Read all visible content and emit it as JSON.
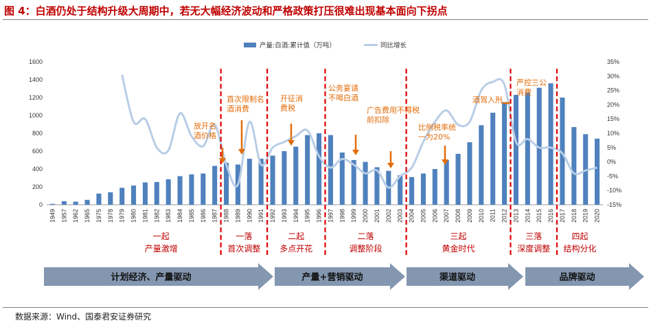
{
  "title": "图 4：白酒仍处于结构升级大周期中，若无大幅经济波动和严格政策打压很难出现基本面向下拐点",
  "source": "数据来源：Wind、国泰君安证券研究",
  "colors": {
    "bar": "#4f81bd",
    "line": "#b8cde6",
    "divider": "#e00000",
    "annotation": "#e36c09",
    "phase": "#c00000",
    "arrow": "#8497b0"
  },
  "chart_data": {
    "type": "bar",
    "title": "",
    "xlabel": "",
    "ylabel": "",
    "ylim": [
      0,
      1600
    ],
    "y2lim": [
      -15,
      35
    ],
    "y_ticks": [
      0,
      200,
      400,
      600,
      800,
      1000,
      1200,
      1400,
      1600
    ],
    "y2_ticks": [
      "-15%",
      "-10%",
      "-5%",
      "0%",
      "5%",
      "10%",
      "15%",
      "20%",
      "25%",
      "30%",
      "35%"
    ],
    "categories": [
      "1949",
      "1957",
      "1962",
      "1965",
      "1975",
      "1978",
      "1979",
      "1980",
      "1981",
      "1982",
      "1983",
      "1984",
      "1985",
      "1986",
      "1987",
      "1988",
      "1989",
      "1990",
      "1991",
      "1992",
      "1993",
      "1994",
      "1995",
      "1996",
      "1997",
      "1998",
      "1999",
      "2000",
      "2001",
      "2002",
      "2003",
      "2004",
      "2005",
      "2006",
      "2007",
      "2008",
      "2009",
      "2010",
      "2011",
      "2012",
      "2013",
      "2014",
      "2015",
      "2016",
      "2017",
      "2018",
      "2019",
      "2020"
    ],
    "series": [
      {
        "name": "产量:白酒:累计值（万吨）",
        "type": "bar",
        "axis": "left",
        "values": [
          10,
          40,
          35,
          55,
          125,
          140,
          190,
          215,
          250,
          255,
          285,
          320,
          340,
          350,
          435,
          470,
          450,
          515,
          515,
          550,
          600,
          650,
          780,
          800,
          780,
          585,
          500,
          480,
          420,
          380,
          330,
          310,
          350,
          400,
          500,
          570,
          700,
          890,
          1030,
          1150,
          1230,
          1260,
          1310,
          1360,
          1200,
          870,
          790,
          740
        ]
      },
      {
        "name": "同比增长",
        "type": "line",
        "axis": "right",
        "values": [
          null,
          null,
          null,
          null,
          null,
          null,
          30.5,
          14,
          15,
          5,
          4,
          17,
          9,
          5.5,
          13,
          -1,
          -8,
          14,
          -1,
          5,
          7,
          9,
          11,
          2,
          -2,
          1,
          -1,
          -4,
          -3,
          -9,
          -5,
          -2,
          7,
          14,
          18,
          13,
          14,
          25,
          28,
          27,
          7,
          8,
          5,
          5,
          3,
          -4,
          -3,
          -2
        ]
      }
    ],
    "dividers": [
      "1988",
      "1992",
      "1997",
      "2004",
      "2013",
      "2017"
    ],
    "annotations": [
      {
        "text": [
          "放开名",
          "酒价格"
        ],
        "year": "1988"
      },
      {
        "text": [
          "首次限制名",
          "酒消费"
        ],
        "year": "1989"
      },
      {
        "text": [
          "开征消",
          "费税"
        ],
        "year": "1994"
      },
      {
        "text": [
          "公务宴请",
          "不喝白酒"
        ],
        "year": "1998"
      },
      {
        "text": [
          "广告费用不得税",
          "前扣除"
        ],
        "year": "1999"
      },
      {
        "text": [],
        "year": "2002"
      },
      {
        "text": [
          "比例税率统",
          "一为20%"
        ],
        "year": "2007"
      },
      {
        "text": [
          "酒驾入刑"
        ],
        "year": "2011"
      },
      {
        "text": [
          "严控三公",
          "消费"
        ],
        "year": "2013"
      }
    ],
    "phases": [
      {
        "num": "一起",
        "label": "产量激增"
      },
      {
        "num": "一落",
        "label": "首次调整"
      },
      {
        "num": "二起",
        "label": "多点开花"
      },
      {
        "num": "二落",
        "label": "调整阶段"
      },
      {
        "num": "三起",
        "label": "黄金时代"
      },
      {
        "num": "三落",
        "label": "深度调整"
      },
      {
        "num": "四起",
        "label": "结构分化"
      }
    ],
    "drivers": [
      "计划经济、产量驱动",
      "产量+营销驱动",
      "渠道驱动",
      "品牌驱动"
    ]
  }
}
